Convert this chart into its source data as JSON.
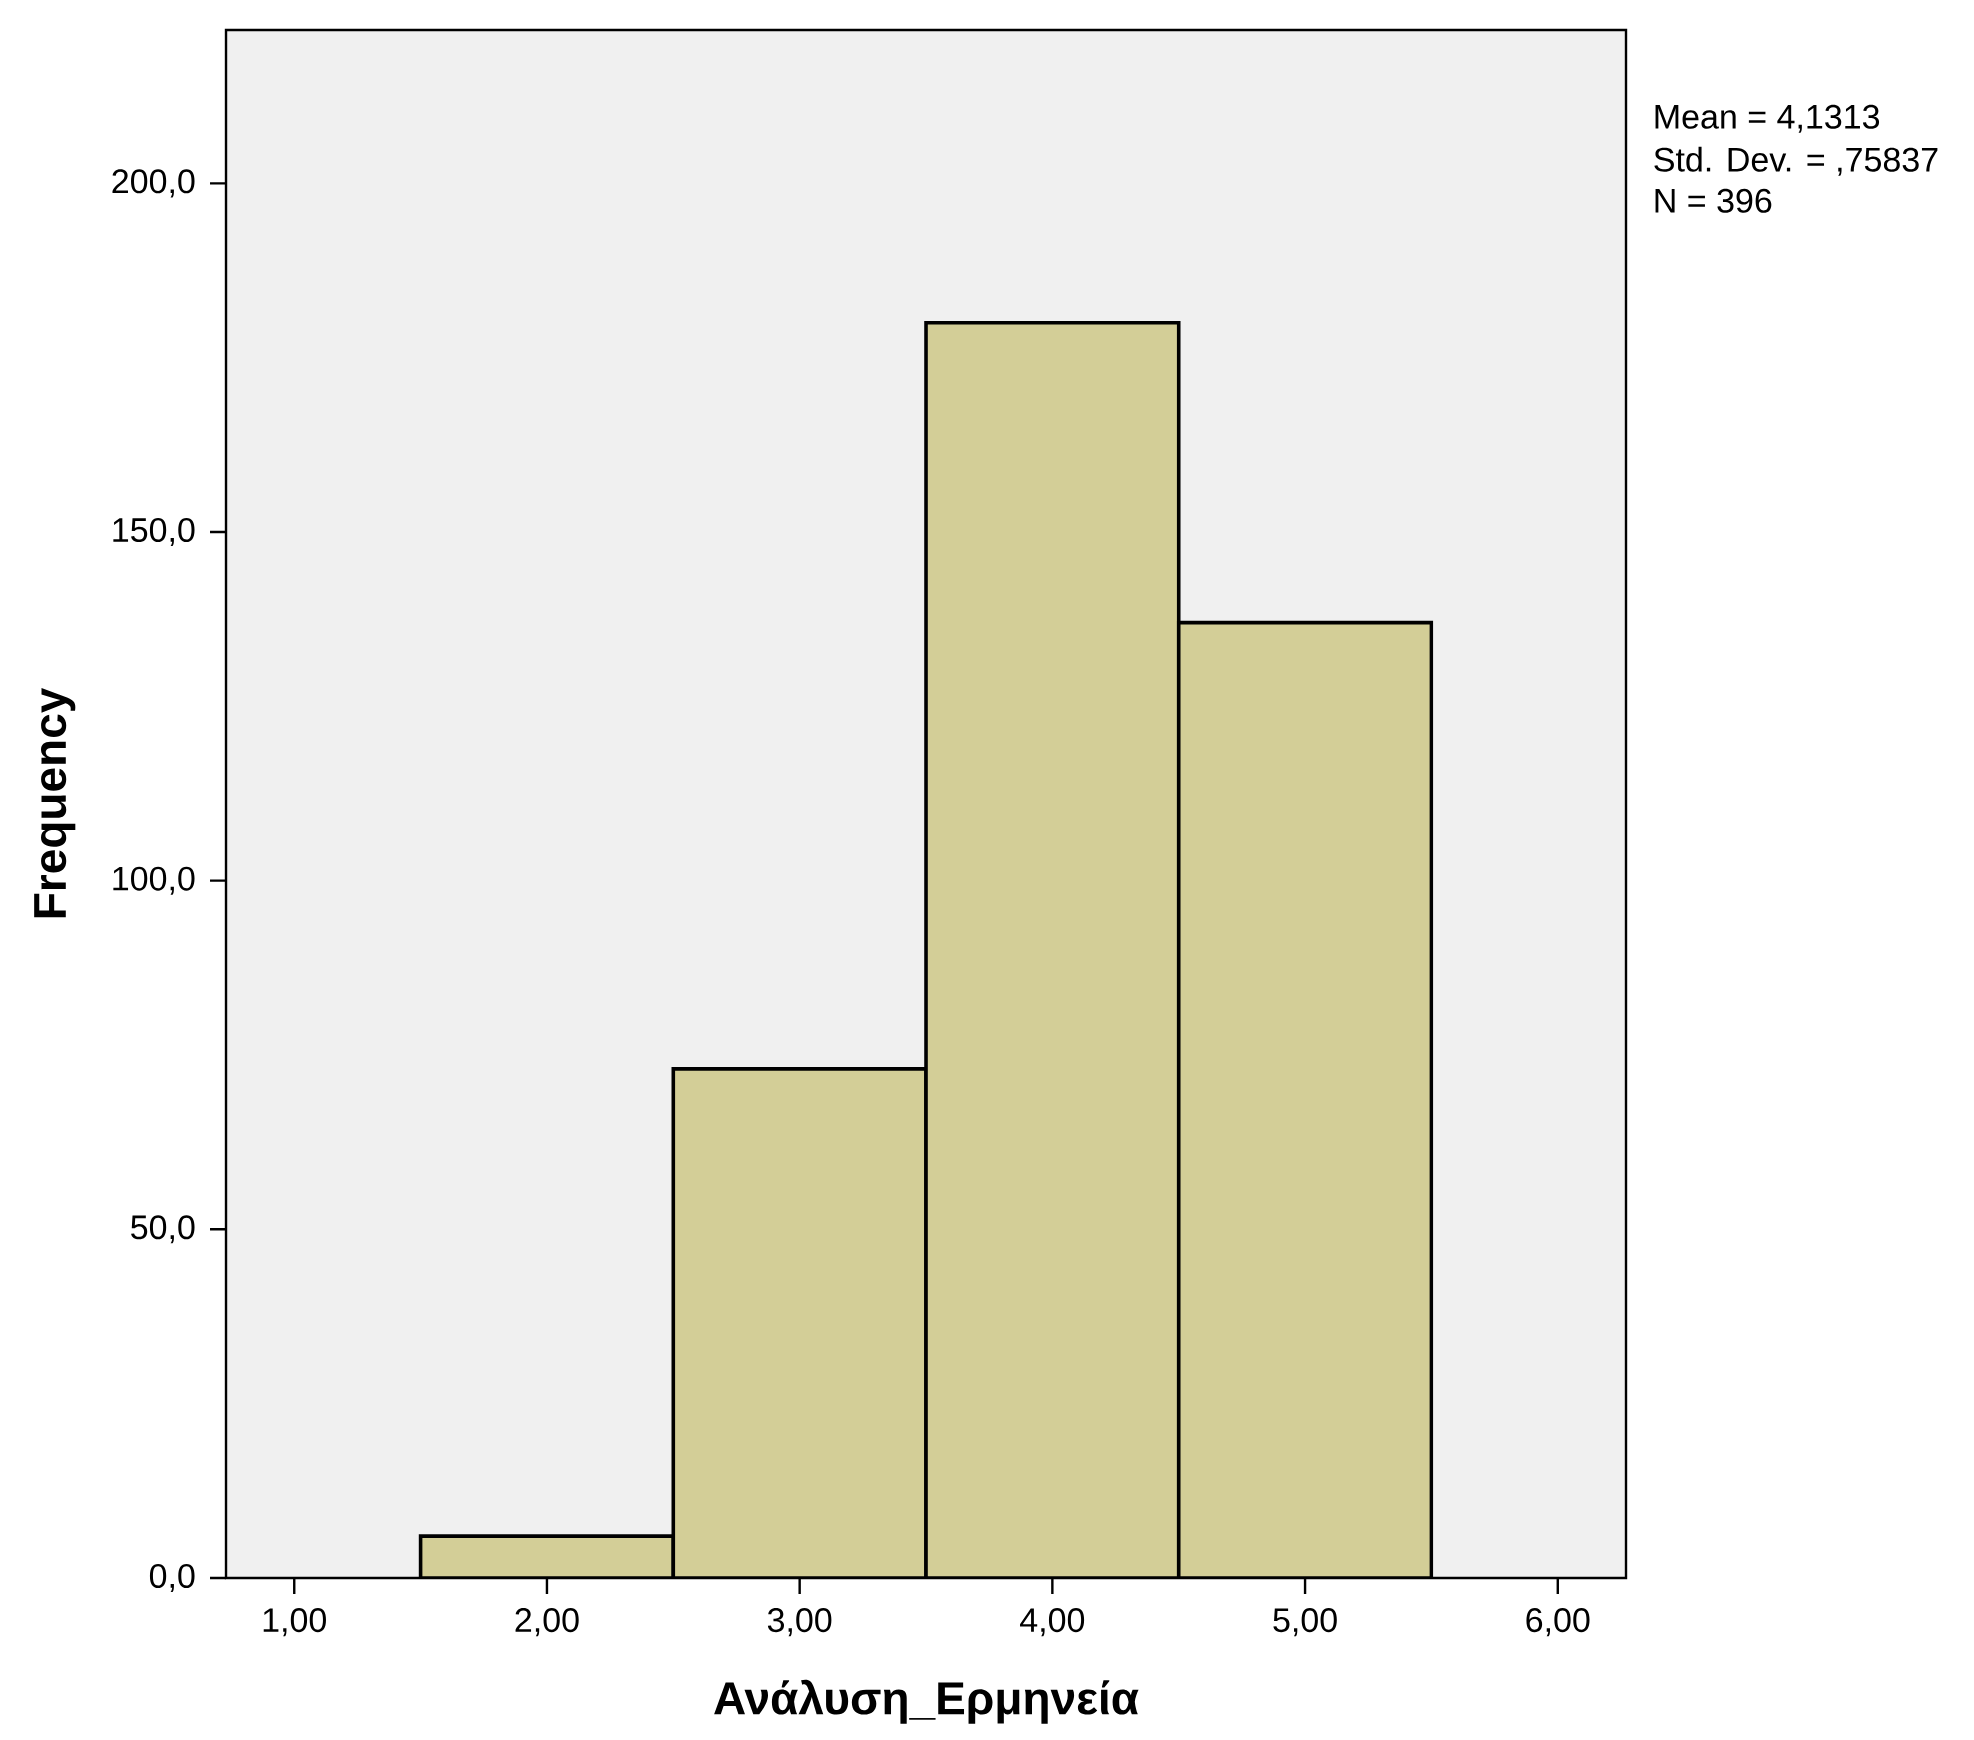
{
  "chart_data": {
    "type": "histogram",
    "xlabel": "Ανάλυση_Ερμηνεία",
    "ylabel": "Frequency",
    "bins": [
      1.5,
      2.5,
      3.5,
      4.5,
      5.5
    ],
    "values": [
      6,
      73,
      180,
      137
    ],
    "color": "#d3ce97",
    "xlim": [
      0.73,
      6.27
    ],
    "ylim": [
      0,
      222
    ],
    "xticks": [
      {
        "value": 1,
        "label": "1,00"
      },
      {
        "value": 2,
        "label": "2,00"
      },
      {
        "value": 3,
        "label": "3,00"
      },
      {
        "value": 4,
        "label": "4,00"
      },
      {
        "value": 5,
        "label": "5,00"
      },
      {
        "value": 6,
        "label": "6,00"
      }
    ],
    "yticks": [
      {
        "value": 0,
        "label": "0,0"
      },
      {
        "value": 50,
        "label": "50,0"
      },
      {
        "value": 100,
        "label": "100,0"
      },
      {
        "value": 150,
        "label": "150,0"
      },
      {
        "value": 200,
        "label": "200,0"
      }
    ],
    "annotations": [
      "Mean = 4,1313",
      "Std. Dev. = ,75837",
      "N = 396"
    ]
  }
}
